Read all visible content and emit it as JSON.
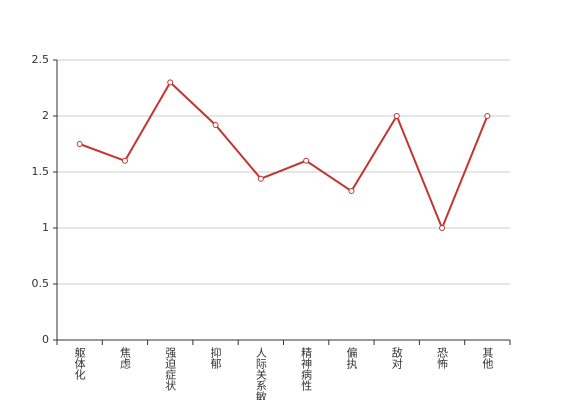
{
  "chart_data": {
    "type": "line",
    "categories": [
      "躯体化",
      "焦虑",
      "强迫症状",
      "抑郁",
      "人际关系敏感",
      "精神病性",
      "偏执",
      "敌对",
      "恐怖",
      "其他"
    ],
    "values": [
      1.75,
      1.6,
      2.3,
      1.92,
      1.44,
      1.6,
      1.33,
      2.0,
      1.0,
      2.0
    ],
    "color": "#c23531",
    "ylim": [
      0,
      2.5
    ],
    "yticks": [
      0,
      0.5,
      1,
      1.5,
      2,
      2.5
    ],
    "grid": true
  }
}
